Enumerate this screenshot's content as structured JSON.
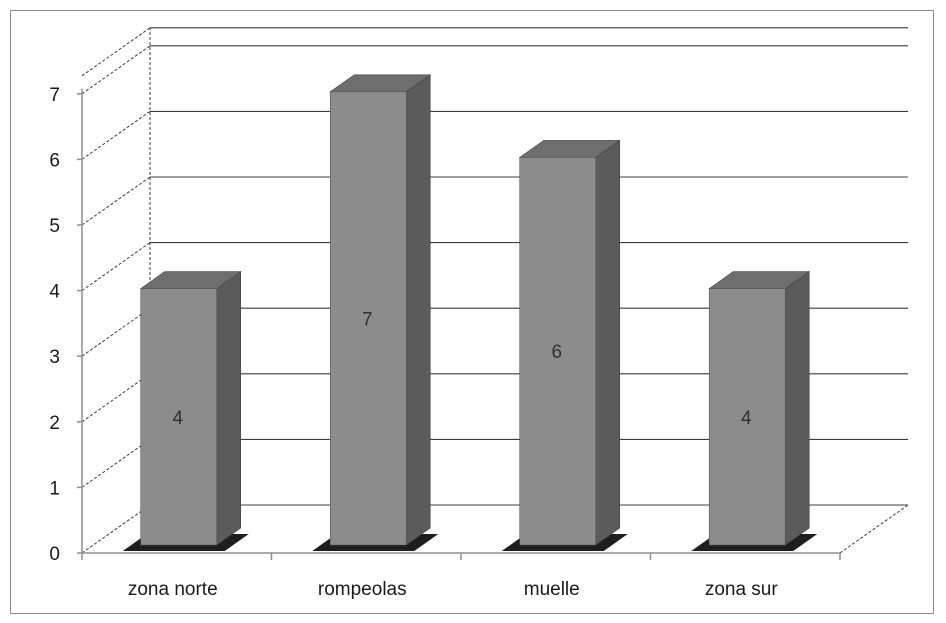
{
  "chart_data": {
    "type": "bar",
    "style": "3d-column",
    "categories": [
      "zona norte",
      "rompeolas",
      "muelle",
      "zona sur"
    ],
    "series": [
      {
        "values": [
          4,
          7,
          6,
          4
        ]
      }
    ],
    "data_labels": [
      "4",
      "7",
      "6",
      "4"
    ],
    "y_ticks": [
      "0",
      "1",
      "2",
      "3",
      "4",
      "5",
      "6",
      "7"
    ],
    "ylim": [
      0,
      7
    ],
    "grid": true,
    "legend": "none",
    "title": "",
    "xlabel": "",
    "ylabel": ""
  },
  "colors": {
    "bar_front": "#8c8c8c",
    "bar_top": "#6e6e6e",
    "bar_side": "#5b5b5b",
    "grid": "#3c3c3c",
    "axis": "#8f8f8f",
    "text": "#1a1a1a"
  }
}
